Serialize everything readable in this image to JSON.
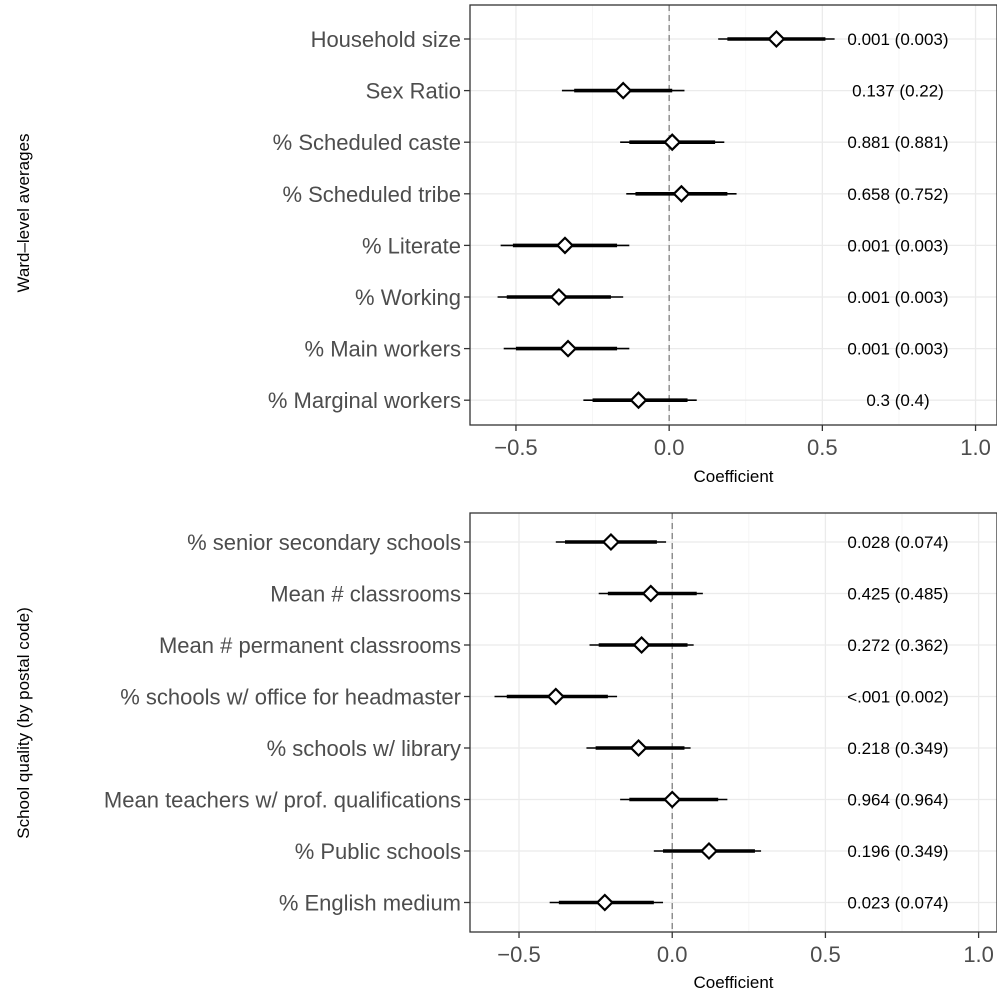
{
  "chart_data": [
    {
      "type": "scatter",
      "style": "coefficient-plot",
      "panel_label": "Ward–level averages",
      "xlabel": "Coefficient",
      "xlim": [
        -0.65,
        1.07
      ],
      "xticks": [
        -0.5,
        0.0,
        0.5,
        1.0
      ],
      "xtick_labels": [
        "−0.5",
        "0.0",
        "0.5",
        "1.0"
      ],
      "zero_line": 0,
      "grid": true,
      "rows": [
        {
          "label": "Household size",
          "estimate": 0.35,
          "ci90": [
            0.19,
            0.51
          ],
          "ci95": [
            0.16,
            0.54
          ],
          "pvalue_text": "0.001 (0.003)"
        },
        {
          "label": "Sex Ratio",
          "estimate": -0.15,
          "ci90": [
            -0.31,
            0.01
          ],
          "ci95": [
            -0.35,
            0.05
          ],
          "pvalue_text": "0.137 (0.22)"
        },
        {
          "label": "% Scheduled caste",
          "estimate": 0.01,
          "ci90": [
            -0.13,
            0.15
          ],
          "ci95": [
            -0.16,
            0.18
          ],
          "pvalue_text": "0.881 (0.881)"
        },
        {
          "label": "% Scheduled tribe",
          "estimate": 0.04,
          "ci90": [
            -0.11,
            0.19
          ],
          "ci95": [
            -0.14,
            0.22
          ],
          "pvalue_text": "0.658 (0.752)"
        },
        {
          "label": "% Literate",
          "estimate": -0.34,
          "ci90": [
            -0.51,
            -0.17
          ],
          "ci95": [
            -0.55,
            -0.13
          ],
          "pvalue_text": "0.001 (0.003)"
        },
        {
          "label": "% Working",
          "estimate": -0.36,
          "ci90": [
            -0.53,
            -0.19
          ],
          "ci95": [
            -0.56,
            -0.15
          ],
          "pvalue_text": "0.001 (0.003)"
        },
        {
          "label": "% Main workers",
          "estimate": -0.33,
          "ci90": [
            -0.5,
            -0.17
          ],
          "ci95": [
            -0.54,
            -0.13
          ],
          "pvalue_text": "0.001 (0.003)"
        },
        {
          "label": "% Marginal workers",
          "estimate": -0.1,
          "ci90": [
            -0.25,
            0.06
          ],
          "ci95": [
            -0.28,
            0.09
          ],
          "pvalue_text": "0.3 (0.4)"
        }
      ]
    },
    {
      "type": "scatter",
      "style": "coefficient-plot",
      "panel_label": "School quality (by postal code)",
      "xlabel": "Coefficient",
      "xlim": [
        -0.66,
        1.06
      ],
      "xticks": [
        -0.5,
        0.0,
        0.5,
        1.0
      ],
      "xtick_labels": [
        "−0.5",
        "0.0",
        "0.5",
        "1.0"
      ],
      "zero_line": 0,
      "grid": true,
      "rows": [
        {
          "label": "% senior secondary schools",
          "estimate": -0.2,
          "ci90": [
            -0.35,
            -0.05
          ],
          "ci95": [
            -0.38,
            -0.02
          ],
          "pvalue_text": "0.028 (0.074)"
        },
        {
          "label": "Mean # classrooms",
          "estimate": -0.07,
          "ci90": [
            -0.21,
            0.08
          ],
          "ci95": [
            -0.24,
            0.1
          ],
          "pvalue_text": "0.425 (0.485)"
        },
        {
          "label": "Mean # permanent classrooms",
          "estimate": -0.1,
          "ci90": [
            -0.24,
            0.05
          ],
          "ci95": [
            -0.27,
            0.07
          ],
          "pvalue_text": "0.272 (0.362)"
        },
        {
          "label": "% schools w/ office for headmaster",
          "estimate": -0.38,
          "ci90": [
            -0.54,
            -0.21
          ],
          "ci95": [
            -0.58,
            -0.18
          ],
          "pvalue_text": "<.001 (0.002)"
        },
        {
          "label": "% schools w/ library",
          "estimate": -0.11,
          "ci90": [
            -0.25,
            0.04
          ],
          "ci95": [
            -0.28,
            0.06
          ],
          "pvalue_text": "0.218 (0.349)"
        },
        {
          "label": "Mean teachers w/ prof. qualifications",
          "estimate": 0.0,
          "ci90": [
            -0.14,
            0.15
          ],
          "ci95": [
            -0.17,
            0.18
          ],
          "pvalue_text": "0.964 (0.964)"
        },
        {
          "label": "% Public schools",
          "estimate": 0.12,
          "ci90": [
            -0.03,
            0.27
          ],
          "ci95": [
            -0.06,
            0.29
          ],
          "pvalue_text": "0.196 (0.349)"
        },
        {
          "label": "% English medium",
          "estimate": -0.22,
          "ci90": [
            -0.37,
            -0.06
          ],
          "ci95": [
            -0.4,
            -0.03
          ],
          "pvalue_text": "0.023 (0.074)"
        }
      ]
    }
  ]
}
